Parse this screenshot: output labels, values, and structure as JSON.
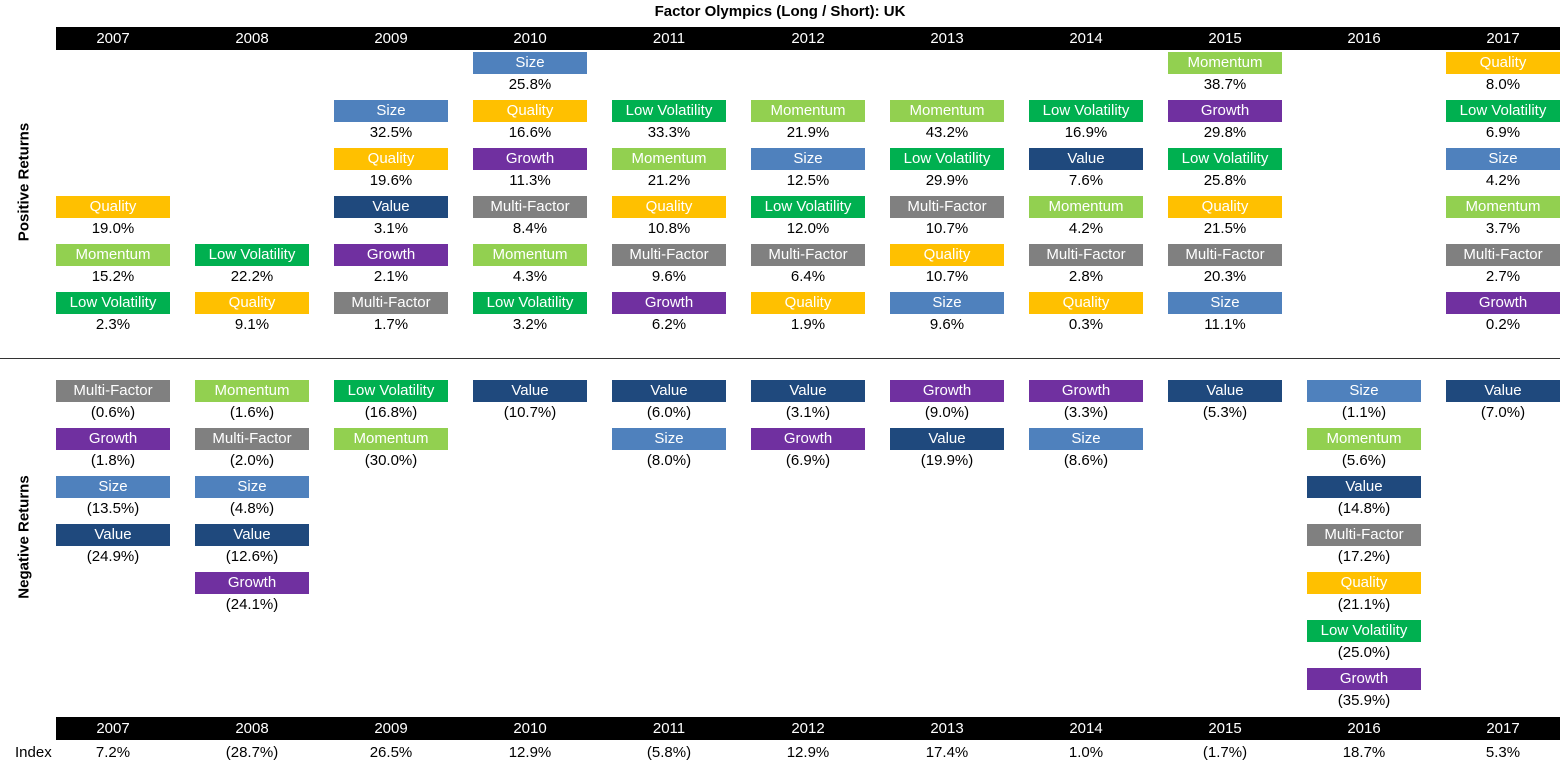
{
  "chart_data": {
    "type": "table",
    "title": "Factor Olympics (Long / Short): UK",
    "years": [
      "2007",
      "2008",
      "2009",
      "2010",
      "2011",
      "2012",
      "2013",
      "2014",
      "2015",
      "2016",
      "2017"
    ],
    "positive_label": "Positive  Returns",
    "negative_label": "Negative  Returns",
    "index_label": "Index",
    "colors": {
      "Size": "#4F81BD",
      "Quality": "#FFC000",
      "Low Volatility": "#00B050",
      "Momentum": "#92D050",
      "Growth": "#7030A0",
      "Value": "#1F497D",
      "Multi-Factor": "#808080"
    },
    "positive": [
      [
        {
          "factor": "Quality",
          "label": "19.0%"
        },
        {
          "factor": "Momentum",
          "label": "15.2%"
        },
        {
          "factor": "Low Volatility",
          "label": "2.3%"
        }
      ],
      [
        {
          "factor": "Low Volatility",
          "label": "22.2%"
        },
        {
          "factor": "Quality",
          "label": "9.1%"
        }
      ],
      [
        {
          "factor": "Size",
          "label": "32.5%"
        },
        {
          "factor": "Quality",
          "label": "19.6%"
        },
        {
          "factor": "Value",
          "label": "3.1%"
        },
        {
          "factor": "Growth",
          "label": "2.1%"
        },
        {
          "factor": "Multi-Factor",
          "label": "1.7%"
        }
      ],
      [
        {
          "factor": "Size",
          "label": "25.8%"
        },
        {
          "factor": "Quality",
          "label": "16.6%"
        },
        {
          "factor": "Growth",
          "label": "11.3%"
        },
        {
          "factor": "Multi-Factor",
          "label": "8.4%"
        },
        {
          "factor": "Momentum",
          "label": "4.3%"
        },
        {
          "factor": "Low Volatility",
          "label": "3.2%"
        }
      ],
      [
        {
          "factor": "Low Volatility",
          "label": "33.3%"
        },
        {
          "factor": "Momentum",
          "label": "21.2%"
        },
        {
          "factor": "Quality",
          "label": "10.8%"
        },
        {
          "factor": "Multi-Factor",
          "label": "9.6%"
        },
        {
          "factor": "Growth",
          "label": "6.2%"
        }
      ],
      [
        {
          "factor": "Momentum",
          "label": "21.9%"
        },
        {
          "factor": "Size",
          "label": "12.5%"
        },
        {
          "factor": "Low Volatility",
          "label": "12.0%"
        },
        {
          "factor": "Multi-Factor",
          "label": "6.4%"
        },
        {
          "factor": "Quality",
          "label": "1.9%"
        }
      ],
      [
        {
          "factor": "Momentum",
          "label": "43.2%"
        },
        {
          "factor": "Low Volatility",
          "label": "29.9%"
        },
        {
          "factor": "Multi-Factor",
          "label": "10.7%"
        },
        {
          "factor": "Quality",
          "label": "10.7%"
        },
        {
          "factor": "Size",
          "label": "9.6%"
        }
      ],
      [
        {
          "factor": "Low Volatility",
          "label": "16.9%"
        },
        {
          "factor": "Value",
          "label": "7.6%"
        },
        {
          "factor": "Momentum",
          "label": "4.2%"
        },
        {
          "factor": "Multi-Factor",
          "label": "2.8%"
        },
        {
          "factor": "Quality",
          "label": "0.3%"
        }
      ],
      [
        {
          "factor": "Momentum",
          "label": "38.7%"
        },
        {
          "factor": "Growth",
          "label": "29.8%"
        },
        {
          "factor": "Low Volatility",
          "label": "25.8%"
        },
        {
          "factor": "Quality",
          "label": "21.5%"
        },
        {
          "factor": "Multi-Factor",
          "label": "20.3%"
        },
        {
          "factor": "Size",
          "label": "11.1%"
        }
      ],
      [],
      [
        {
          "factor": "Quality",
          "label": "8.0%"
        },
        {
          "factor": "Low Volatility",
          "label": "6.9%"
        },
        {
          "factor": "Size",
          "label": "4.2%"
        },
        {
          "factor": "Momentum",
          "label": "3.7%"
        },
        {
          "factor": "Multi-Factor",
          "label": "2.7%"
        },
        {
          "factor": "Growth",
          "label": "0.2%"
        }
      ]
    ],
    "negative": [
      [
        {
          "factor": "Multi-Factor",
          "label": "(0.6%)"
        },
        {
          "factor": "Growth",
          "label": "(1.8%)"
        },
        {
          "factor": "Size",
          "label": "(13.5%)"
        },
        {
          "factor": "Value",
          "label": "(24.9%)"
        }
      ],
      [
        {
          "factor": "Momentum",
          "label": "(1.6%)"
        },
        {
          "factor": "Multi-Factor",
          "label": "(2.0%)"
        },
        {
          "factor": "Size",
          "label": "(4.8%)"
        },
        {
          "factor": "Value",
          "label": "(12.6%)"
        },
        {
          "factor": "Growth",
          "label": "(24.1%)"
        }
      ],
      [
        {
          "factor": "Low Volatility",
          "label": "(16.8%)"
        },
        {
          "factor": "Momentum",
          "label": "(30.0%)"
        }
      ],
      [
        {
          "factor": "Value",
          "label": "(10.7%)"
        }
      ],
      [
        {
          "factor": "Value",
          "label": "(6.0%)"
        },
        {
          "factor": "Size",
          "label": "(8.0%)"
        }
      ],
      [
        {
          "factor": "Value",
          "label": "(3.1%)"
        },
        {
          "factor": "Growth",
          "label": "(6.9%)"
        }
      ],
      [
        {
          "factor": "Growth",
          "label": "(9.0%)"
        },
        {
          "factor": "Value",
          "label": "(19.9%)"
        }
      ],
      [
        {
          "factor": "Growth",
          "label": "(3.3%)"
        },
        {
          "factor": "Size",
          "label": "(8.6%)"
        }
      ],
      [
        {
          "factor": "Value",
          "label": "(5.3%)"
        }
      ],
      [
        {
          "factor": "Size",
          "label": "(1.1%)"
        },
        {
          "factor": "Momentum",
          "label": "(5.6%)"
        },
        {
          "factor": "Value",
          "label": "(14.8%)"
        },
        {
          "factor": "Multi-Factor",
          "label": "(17.2%)"
        },
        {
          "factor": "Quality",
          "label": "(21.1%)"
        },
        {
          "factor": "Low Volatility",
          "label": "(25.0%)"
        },
        {
          "factor": "Growth",
          "label": "(35.9%)"
        }
      ],
      [
        {
          "factor": "Value",
          "label": "(7.0%)"
        }
      ]
    ],
    "index": [
      "7.2%",
      "(28.7%)",
      "26.5%",
      "12.9%",
      "(5.8%)",
      "12.9%",
      "17.4%",
      "1.0%",
      "(1.7%)",
      "18.7%",
      "5.3%"
    ]
  }
}
